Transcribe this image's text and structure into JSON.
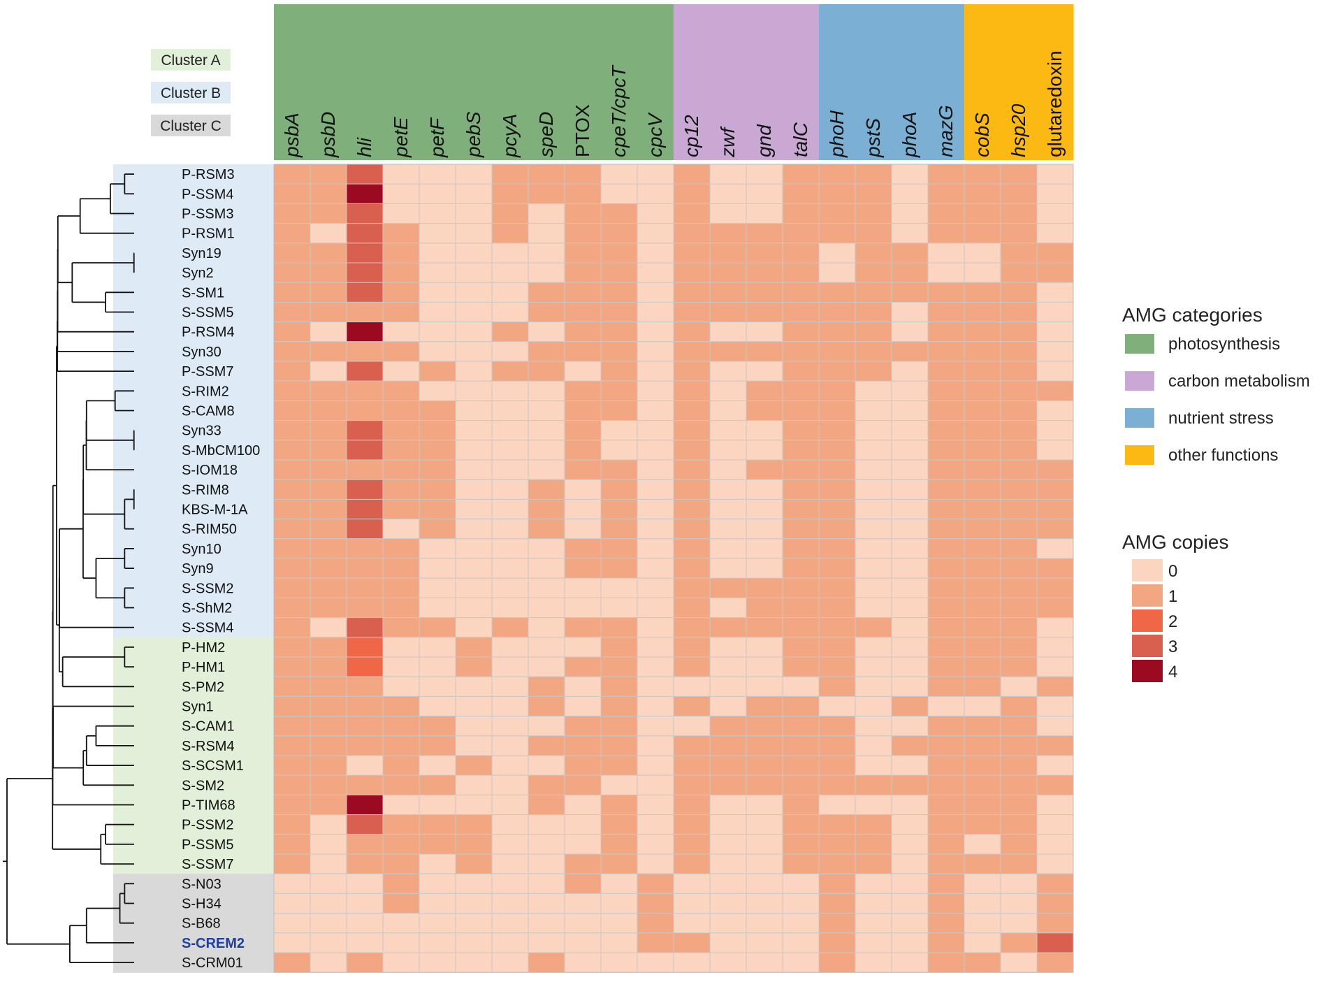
{
  "chart_data": {
    "type": "heatmap",
    "title": "",
    "genes": [
      {
        "name": "psbA",
        "italic": true,
        "category": "photosynthesis"
      },
      {
        "name": "psbD",
        "italic": true,
        "category": "photosynthesis"
      },
      {
        "name": "hli",
        "italic": true,
        "category": "photosynthesis"
      },
      {
        "name": "petE",
        "italic": true,
        "category": "photosynthesis"
      },
      {
        "name": "petF",
        "italic": true,
        "category": "photosynthesis"
      },
      {
        "name": "pebS",
        "italic": true,
        "category": "photosynthesis"
      },
      {
        "name": "pcyA",
        "italic": true,
        "category": "photosynthesis"
      },
      {
        "name": "speD",
        "italic": true,
        "category": "photosynthesis"
      },
      {
        "name": "PTOX",
        "italic": false,
        "category": "photosynthesis"
      },
      {
        "name": "cpeT/cpcT",
        "italic": true,
        "category": "photosynthesis"
      },
      {
        "name": "cpcV",
        "italic": true,
        "category": "photosynthesis"
      },
      {
        "name": "cp12",
        "italic": true,
        "category": "carbon metabolism"
      },
      {
        "name": "zwf",
        "italic": true,
        "category": "carbon metabolism"
      },
      {
        "name": "gnd",
        "italic": true,
        "category": "carbon metabolism"
      },
      {
        "name": "talC",
        "italic": true,
        "category": "carbon metabolism"
      },
      {
        "name": "phoH",
        "italic": true,
        "category": "nutrient stress"
      },
      {
        "name": "pstS",
        "italic": true,
        "category": "nutrient stress"
      },
      {
        "name": "phoA",
        "italic": true,
        "category": "nutrient stress"
      },
      {
        "name": "mazG",
        "italic": true,
        "category": "nutrient stress"
      },
      {
        "name": "cobS",
        "italic": true,
        "category": "other functions"
      },
      {
        "name": "hsp20",
        "italic": true,
        "category": "other functions"
      },
      {
        "name": "glutaredoxin",
        "italic": false,
        "category": "other functions"
      }
    ],
    "categories": [
      {
        "name": "photosynthesis",
        "color": "#7fb07c"
      },
      {
        "name": "carbon metabolism",
        "color": "#c9a9d3"
      },
      {
        "name": "nutrient stress",
        "color": "#7bafd4"
      },
      {
        "name": "other functions",
        "color": "#fdb913"
      }
    ],
    "clusters": [
      {
        "name": "Cluster A",
        "color": "#e2efd9"
      },
      {
        "name": "Cluster B",
        "color": "#deeaf6"
      },
      {
        "name": "Cluster C",
        "color": "#d9d9d9"
      }
    ],
    "rows": [
      {
        "name": "P-RSM3",
        "cluster": "Cluster B",
        "values": [
          1,
          1,
          3,
          0,
          0,
          0,
          1,
          1,
          1,
          0,
          0,
          1,
          0,
          0,
          1,
          1,
          1,
          0,
          1,
          1,
          1,
          0
        ]
      },
      {
        "name": "P-SSM4",
        "cluster": "Cluster B",
        "values": [
          1,
          1,
          4,
          0,
          0,
          0,
          1,
          1,
          1,
          0,
          0,
          1,
          0,
          0,
          1,
          1,
          1,
          0,
          1,
          1,
          1,
          0
        ]
      },
      {
        "name": "P-SSM3",
        "cluster": "Cluster B",
        "values": [
          1,
          1,
          3,
          0,
          0,
          0,
          1,
          0,
          1,
          1,
          0,
          1,
          0,
          0,
          1,
          1,
          1,
          0,
          1,
          1,
          1,
          0
        ]
      },
      {
        "name": "P-RSM1",
        "cluster": "Cluster B",
        "values": [
          1,
          0,
          3,
          1,
          0,
          0,
          1,
          0,
          1,
          1,
          0,
          1,
          1,
          1,
          1,
          1,
          1,
          0,
          1,
          1,
          1,
          0
        ]
      },
      {
        "name": "Syn19",
        "cluster": "Cluster B",
        "values": [
          1,
          1,
          3,
          1,
          0,
          0,
          0,
          0,
          1,
          1,
          0,
          1,
          1,
          1,
          1,
          0,
          1,
          1,
          0,
          0,
          1,
          1
        ]
      },
      {
        "name": "Syn2",
        "cluster": "Cluster B",
        "values": [
          1,
          1,
          3,
          1,
          0,
          0,
          0,
          0,
          1,
          1,
          0,
          1,
          1,
          1,
          1,
          0,
          1,
          1,
          0,
          0,
          1,
          1
        ]
      },
      {
        "name": "S-SM1",
        "cluster": "Cluster B",
        "values": [
          1,
          1,
          3,
          1,
          0,
          0,
          0,
          1,
          1,
          1,
          0,
          1,
          1,
          1,
          1,
          1,
          1,
          1,
          1,
          1,
          1,
          0
        ]
      },
      {
        "name": "S-SSM5",
        "cluster": "Cluster B",
        "values": [
          1,
          1,
          1,
          1,
          0,
          0,
          0,
          1,
          1,
          1,
          0,
          1,
          1,
          1,
          1,
          1,
          1,
          0,
          1,
          1,
          1,
          0
        ]
      },
      {
        "name": "P-RSM4",
        "cluster": "Cluster B",
        "values": [
          1,
          0,
          4,
          0,
          0,
          0,
          1,
          0,
          1,
          1,
          0,
          1,
          0,
          0,
          1,
          1,
          1,
          0,
          1,
          1,
          1,
          0
        ]
      },
      {
        "name": "Syn30",
        "cluster": "Cluster B",
        "values": [
          1,
          1,
          1,
          1,
          0,
          0,
          0,
          1,
          1,
          1,
          0,
          1,
          1,
          1,
          1,
          1,
          1,
          1,
          1,
          1,
          1,
          0
        ]
      },
      {
        "name": "P-SSM7",
        "cluster": "Cluster B",
        "values": [
          1,
          0,
          3,
          0,
          1,
          0,
          1,
          1,
          0,
          1,
          0,
          1,
          0,
          0,
          1,
          1,
          1,
          0,
          1,
          1,
          1,
          0
        ]
      },
      {
        "name": "S-RIM2",
        "cluster": "Cluster B",
        "values": [
          1,
          1,
          1,
          1,
          0,
          0,
          0,
          0,
          1,
          1,
          0,
          1,
          0,
          1,
          1,
          1,
          0,
          0,
          1,
          1,
          1,
          1
        ]
      },
      {
        "name": "S-CAM8",
        "cluster": "Cluster B",
        "values": [
          1,
          1,
          1,
          1,
          1,
          0,
          0,
          0,
          1,
          1,
          0,
          1,
          0,
          1,
          1,
          1,
          0,
          0,
          1,
          1,
          1,
          0
        ]
      },
      {
        "name": "Syn33",
        "cluster": "Cluster B",
        "values": [
          1,
          1,
          3,
          1,
          1,
          0,
          0,
          0,
          1,
          0,
          0,
          1,
          0,
          0,
          1,
          1,
          0,
          0,
          1,
          1,
          1,
          0
        ]
      },
      {
        "name": "S-MbCM100",
        "cluster": "Cluster B",
        "values": [
          1,
          1,
          3,
          1,
          1,
          0,
          0,
          0,
          1,
          0,
          0,
          1,
          0,
          0,
          1,
          1,
          0,
          0,
          1,
          1,
          1,
          0
        ]
      },
      {
        "name": "S-IOM18",
        "cluster": "Cluster B",
        "values": [
          1,
          1,
          1,
          1,
          1,
          0,
          0,
          0,
          1,
          1,
          0,
          1,
          0,
          1,
          1,
          1,
          0,
          0,
          1,
          1,
          1,
          1
        ]
      },
      {
        "name": "S-RIM8",
        "cluster": "Cluster B",
        "values": [
          1,
          1,
          3,
          1,
          1,
          0,
          0,
          1,
          0,
          1,
          0,
          1,
          0,
          0,
          1,
          1,
          0,
          0,
          1,
          1,
          1,
          1
        ]
      },
      {
        "name": "KBS-M-1A",
        "cluster": "Cluster B",
        "values": [
          1,
          1,
          3,
          1,
          1,
          0,
          0,
          1,
          0,
          1,
          0,
          1,
          0,
          0,
          1,
          1,
          0,
          0,
          1,
          1,
          1,
          1
        ]
      },
      {
        "name": "S-RIM50",
        "cluster": "Cluster B",
        "values": [
          1,
          1,
          3,
          0,
          1,
          0,
          0,
          1,
          0,
          1,
          0,
          1,
          0,
          0,
          1,
          1,
          0,
          0,
          1,
          1,
          1,
          1
        ]
      },
      {
        "name": "Syn10",
        "cluster": "Cluster B",
        "values": [
          1,
          1,
          1,
          1,
          0,
          0,
          0,
          0,
          1,
          1,
          0,
          1,
          0,
          0,
          1,
          1,
          0,
          0,
          1,
          1,
          1,
          0
        ]
      },
      {
        "name": "Syn9",
        "cluster": "Cluster B",
        "values": [
          1,
          1,
          1,
          1,
          0,
          0,
          0,
          0,
          1,
          1,
          0,
          1,
          0,
          0,
          1,
          1,
          0,
          0,
          1,
          1,
          1,
          1
        ]
      },
      {
        "name": "S-SSM2",
        "cluster": "Cluster B",
        "values": [
          1,
          1,
          1,
          1,
          0,
          0,
          0,
          0,
          0,
          0,
          0,
          1,
          1,
          1,
          1,
          1,
          0,
          0,
          1,
          1,
          1,
          1
        ]
      },
      {
        "name": "S-ShM2",
        "cluster": "Cluster B",
        "values": [
          1,
          1,
          1,
          1,
          0,
          0,
          0,
          0,
          0,
          0,
          0,
          1,
          0,
          1,
          1,
          1,
          0,
          0,
          1,
          1,
          1,
          1
        ]
      },
      {
        "name": "S-SSM4",
        "cluster": "Cluster B",
        "values": [
          1,
          0,
          3,
          1,
          1,
          0,
          1,
          0,
          1,
          1,
          0,
          1,
          1,
          1,
          1,
          1,
          1,
          0,
          1,
          1,
          1,
          0
        ]
      },
      {
        "name": "P-HM2",
        "cluster": "Cluster A",
        "values": [
          1,
          1,
          2,
          0,
          0,
          1,
          0,
          0,
          0,
          1,
          0,
          1,
          0,
          0,
          1,
          1,
          0,
          0,
          1,
          1,
          1,
          0
        ]
      },
      {
        "name": "P-HM1",
        "cluster": "Cluster A",
        "values": [
          1,
          1,
          2,
          0,
          0,
          1,
          0,
          0,
          1,
          1,
          0,
          1,
          0,
          0,
          1,
          1,
          0,
          0,
          1,
          1,
          1,
          0
        ]
      },
      {
        "name": "S-PM2",
        "cluster": "Cluster A",
        "values": [
          1,
          1,
          1,
          0,
          0,
          0,
          0,
          1,
          0,
          1,
          0,
          0,
          0,
          0,
          0,
          1,
          0,
          0,
          1,
          1,
          0,
          1
        ]
      },
      {
        "name": "Syn1",
        "cluster": "Cluster A",
        "values": [
          1,
          1,
          1,
          1,
          0,
          0,
          0,
          1,
          0,
          1,
          0,
          1,
          0,
          1,
          1,
          0,
          0,
          1,
          0,
          0,
          1,
          0
        ]
      },
      {
        "name": "S-CAM1",
        "cluster": "Cluster A",
        "values": [
          1,
          1,
          1,
          1,
          1,
          0,
          0,
          0,
          1,
          1,
          0,
          0,
          1,
          1,
          1,
          1,
          0,
          0,
          1,
          1,
          1,
          0
        ]
      },
      {
        "name": "S-RSM4",
        "cluster": "Cluster A",
        "values": [
          1,
          1,
          1,
          1,
          1,
          0,
          0,
          1,
          1,
          1,
          0,
          1,
          1,
          1,
          1,
          1,
          0,
          1,
          1,
          1,
          1,
          1
        ]
      },
      {
        "name": "S-SCSM1",
        "cluster": "Cluster A",
        "values": [
          1,
          1,
          0,
          1,
          0,
          1,
          0,
          0,
          1,
          1,
          0,
          1,
          1,
          1,
          1,
          1,
          0,
          0,
          1,
          1,
          1,
          0
        ]
      },
      {
        "name": "S-SM2",
        "cluster": "Cluster A",
        "values": [
          1,
          1,
          1,
          1,
          1,
          0,
          0,
          1,
          1,
          0,
          0,
          1,
          1,
          1,
          1,
          1,
          1,
          1,
          1,
          1,
          1,
          1
        ]
      },
      {
        "name": "P-TIM68",
        "cluster": "Cluster A",
        "values": [
          1,
          1,
          4,
          0,
          0,
          0,
          0,
          1,
          0,
          1,
          0,
          1,
          0,
          0,
          1,
          0,
          0,
          0,
          1,
          1,
          1,
          0
        ]
      },
      {
        "name": "P-SSM2",
        "cluster": "Cluster A",
        "values": [
          1,
          0,
          3,
          1,
          1,
          1,
          0,
          0,
          0,
          1,
          0,
          1,
          0,
          0,
          1,
          1,
          1,
          0,
          1,
          1,
          1,
          0
        ]
      },
      {
        "name": "P-SSM5",
        "cluster": "Cluster A",
        "values": [
          1,
          0,
          1,
          1,
          1,
          1,
          0,
          0,
          0,
          1,
          0,
          1,
          0,
          0,
          1,
          1,
          1,
          0,
          1,
          0,
          1,
          0
        ]
      },
      {
        "name": "S-SSM7",
        "cluster": "Cluster A",
        "values": [
          1,
          0,
          1,
          1,
          0,
          1,
          0,
          0,
          1,
          1,
          0,
          1,
          0,
          0,
          1,
          1,
          1,
          0,
          1,
          1,
          1,
          0
        ]
      },
      {
        "name": "S-N03",
        "cluster": "Cluster C",
        "values": [
          0,
          0,
          0,
          1,
          0,
          0,
          0,
          0,
          1,
          0,
          1,
          0,
          0,
          0,
          0,
          1,
          0,
          0,
          1,
          0,
          0,
          1
        ]
      },
      {
        "name": "S-H34",
        "cluster": "Cluster C",
        "values": [
          0,
          0,
          0,
          1,
          0,
          0,
          0,
          0,
          0,
          0,
          1,
          0,
          0,
          0,
          0,
          1,
          0,
          0,
          1,
          0,
          0,
          1
        ]
      },
      {
        "name": "S-B68",
        "cluster": "Cluster C",
        "values": [
          0,
          0,
          0,
          0,
          0,
          0,
          0,
          0,
          0,
          0,
          1,
          0,
          0,
          0,
          0,
          1,
          0,
          0,
          1,
          0,
          0,
          1
        ]
      },
      {
        "name": "S-CREM2",
        "cluster": "Cluster C",
        "values": [
          0,
          0,
          0,
          0,
          0,
          0,
          0,
          0,
          0,
          0,
          1,
          1,
          0,
          0,
          0,
          1,
          0,
          0,
          1,
          0,
          1,
          3
        ],
        "highlight": true,
        "highlight_color": "#1f3fa3"
      },
      {
        "name": "S-CRM01",
        "cluster": "Cluster C",
        "values": [
          1,
          0,
          1,
          0,
          0,
          0,
          0,
          1,
          0,
          0,
          0,
          0,
          0,
          0,
          0,
          1,
          0,
          0,
          1,
          1,
          0,
          1
        ]
      }
    ],
    "color_scale": [
      {
        "value": 0,
        "label": "0",
        "color": "#fbd5c0"
      },
      {
        "value": 1,
        "label": "1",
        "color": "#f2a682"
      },
      {
        "value": 2,
        "label": "2",
        "color": "#ef6746"
      },
      {
        "value": 3,
        "label": "3",
        "color": "#d9604e"
      },
      {
        "value": 4,
        "label": "4",
        "color": "#9b0a20"
      }
    ],
    "legend": {
      "categories_title": "AMG categories",
      "copies_title": "AMG copies",
      "placement": "right"
    }
  }
}
